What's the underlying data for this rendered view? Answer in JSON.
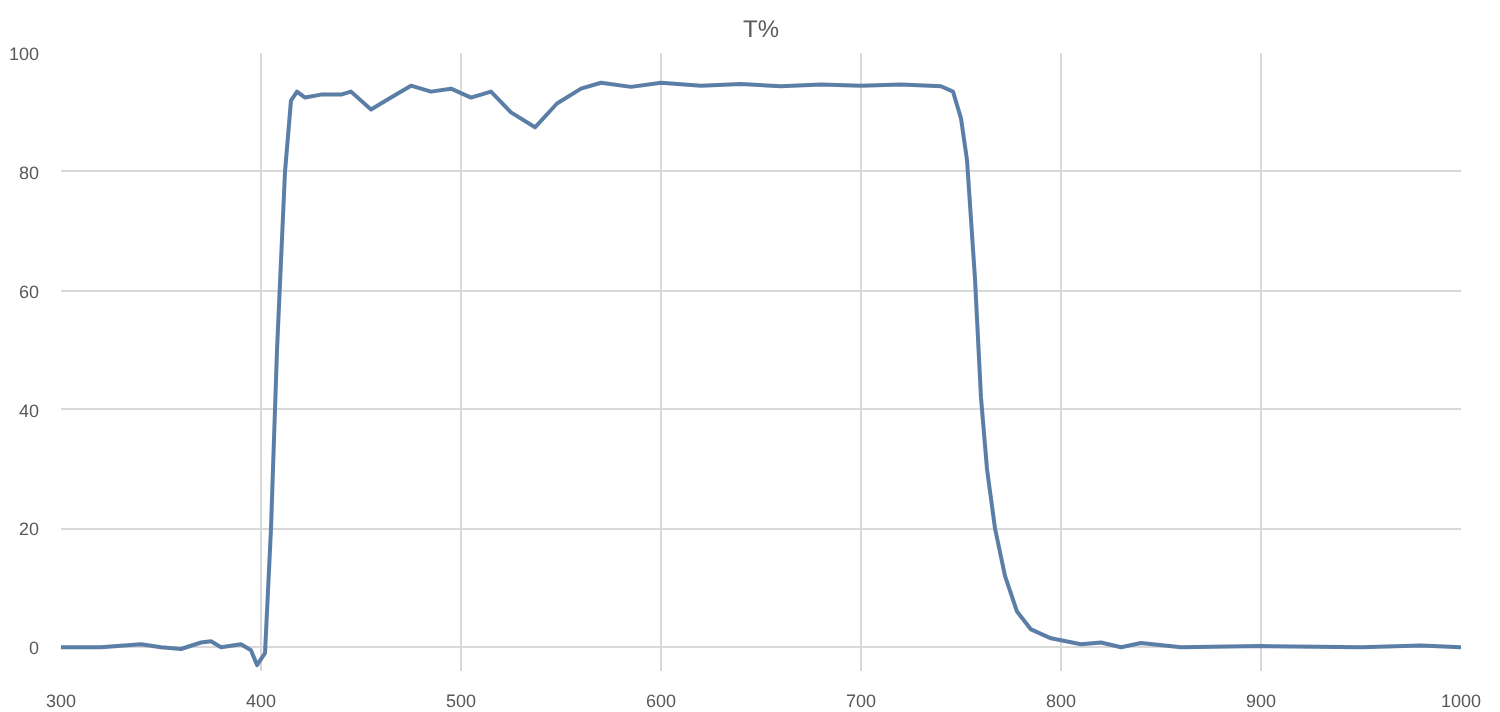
{
  "chart_data": {
    "type": "line",
    "title": "T%",
    "x": [
      300,
      320,
      340,
      350,
      360,
      370,
      375,
      380,
      390,
      395,
      398,
      402,
      405,
      408,
      412,
      415,
      418,
      422,
      430,
      440,
      445,
      455,
      465,
      475,
      485,
      495,
      505,
      515,
      525,
      537,
      548,
      560,
      570,
      585,
      600,
      620,
      640,
      660,
      680,
      700,
      720,
      740,
      746,
      750,
      753,
      757,
      760,
      763,
      767,
      772,
      778,
      785,
      795,
      810,
      820,
      830,
      840,
      860,
      900,
      950,
      980,
      1000
    ],
    "series": [
      {
        "color": "#5b7ea6",
        "values": [
          0,
          0,
          0.5,
          0,
          -0.3,
          0.8,
          1,
          0,
          0.5,
          -0.5,
          -3,
          -1,
          20,
          50,
          80,
          92,
          93.5,
          92.5,
          93,
          93,
          93.5,
          90.5,
          92.5,
          94.5,
          93.5,
          94,
          92.5,
          93.5,
          90,
          87.5,
          91.5,
          94,
          95,
          94.3,
          95,
          94.5,
          94.8,
          94.4,
          94.7,
          94.5,
          94.7,
          94.4,
          93.5,
          89,
          82,
          62,
          42,
          30,
          20,
          12,
          6,
          3,
          1.5,
          0.5,
          0.8,
          0,
          0.7,
          0,
          0.2,
          0,
          0.3,
          0
        ]
      }
    ],
    "xlim": [
      300,
      1000
    ],
    "ylim": [
      -4,
      100
    ],
    "xticks": [
      300,
      400,
      500,
      600,
      700,
      800,
      900,
      1000
    ],
    "yticks": [
      0,
      20,
      40,
      60,
      80,
      100
    ],
    "grid": true,
    "line_style": "solid",
    "marker": "none"
  }
}
